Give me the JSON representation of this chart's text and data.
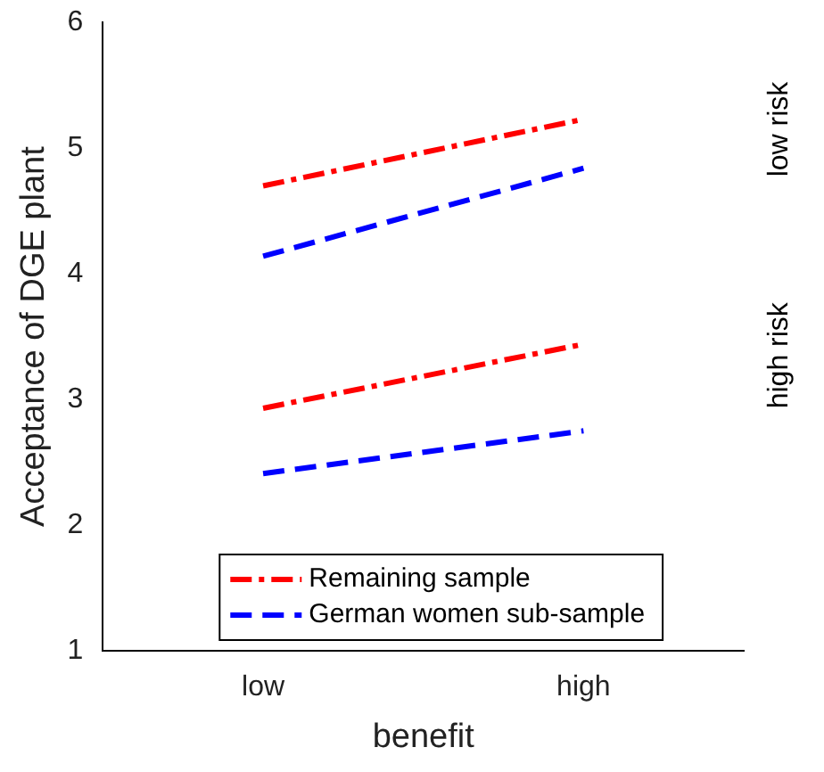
{
  "chart_data": {
    "type": "line",
    "xlabel": "benefit",
    "ylabel": "Acceptance of DGE plant",
    "categories": [
      "low",
      "high"
    ],
    "series": [
      {
        "name": "Remaining sample",
        "color": "#ff0000",
        "values": [
          4.7,
          5.23
        ],
        "line_style": "dashdot"
      },
      {
        "name": "German women sub-sample",
        "color": "#0000ff",
        "values": [
          4.14,
          4.84
        ],
        "line_style": "dashed"
      },
      {
        "color": "#ff0000",
        "values": [
          2.93,
          3.44
        ],
        "line_style": "dashdot"
      },
      {
        "color": "#0000ff",
        "values": [
          2.41,
          2.75
        ],
        "line_style": "dashed"
      }
    ],
    "ylim": [
      1,
      6
    ],
    "yticks": [
      1,
      2,
      3,
      4,
      5,
      6
    ],
    "grid": false,
    "legend": "bottom",
    "marker": "none",
    "annotations": [
      "low risk",
      "high risk"
    ]
  }
}
